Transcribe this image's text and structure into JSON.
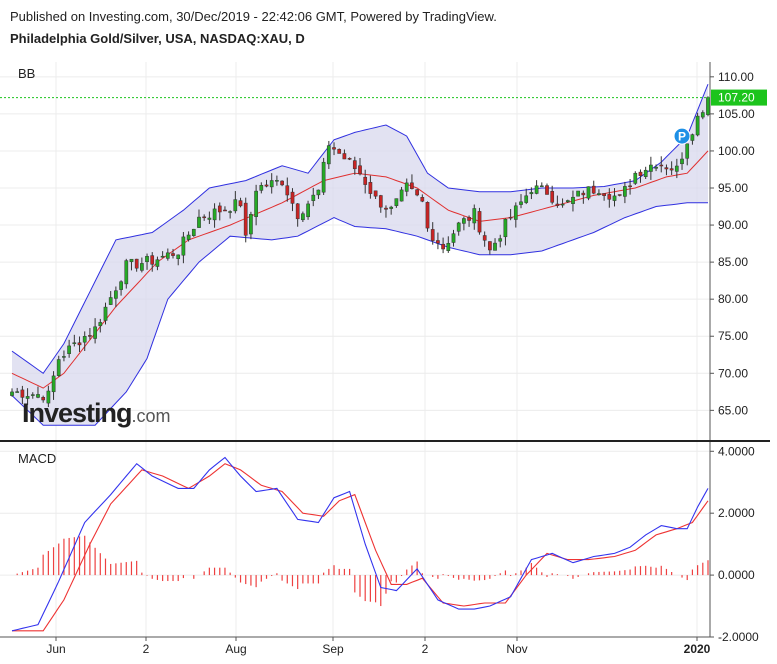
{
  "header": {
    "published": "Published on Investing.com, 30/Dec/2019 - 22:42:06 GMT, Powered by TradingView.",
    "symbol": "Philadelphia Gold/Silver, USA, NASDAQ:XAU, D"
  },
  "watermark": {
    "main": "Investing",
    "domain": ".com"
  },
  "colors": {
    "up": "#26a926",
    "down": "#c82424",
    "band_fill": "#d8d8ee",
    "band_line": "#3030e0",
    "basis_line": "#e03030",
    "macd_line": "#3333ee",
    "signal_line": "#ee3333",
    "histogram": "#ee4040",
    "price_line": "#1cc41c",
    "marker": "#1e90e6"
  },
  "chart_data": [
    {
      "type": "candlestick",
      "title": "BB",
      "ylim": [
        61,
        112
      ],
      "y_ticks": [
        "110.00",
        "105.00",
        "100.00",
        "95.00",
        "90.00",
        "85.00",
        "80.00",
        "75.00",
        "70.00",
        "65.00"
      ],
      "x_ticks": [
        "Jun",
        "2",
        "Aug",
        "Sep",
        "2",
        "Nov",
        "2020"
      ],
      "last_price": "107.20",
      "marker": {
        "label": "P",
        "price": 102.0,
        "index": 129
      },
      "candles_description": "Daily OHLC estimated from the image, generated by script from key closing prices",
      "close_keypoints": [
        [
          0,
          67.5
        ],
        [
          7,
          67.0
        ],
        [
          9,
          72
        ],
        [
          13,
          74.5
        ],
        [
          16,
          76
        ],
        [
          22,
          84.5
        ],
        [
          27,
          85.2
        ],
        [
          32,
          86.5
        ],
        [
          36,
          91
        ],
        [
          40,
          92
        ],
        [
          44,
          93
        ],
        [
          45,
          88
        ],
        [
          47,
          95
        ],
        [
          52,
          96
        ],
        [
          55,
          91.5
        ],
        [
          59,
          94.5
        ],
        [
          61,
          101
        ],
        [
          64,
          99
        ],
        [
          67,
          97
        ],
        [
          70,
          93.5
        ],
        [
          73,
          92
        ],
        [
          76,
          95
        ],
        [
          79,
          93
        ],
        [
          80,
          89.5
        ],
        [
          83,
          87
        ],
        [
          86,
          90
        ],
        [
          89,
          91.5
        ],
        [
          92,
          86.5
        ],
        [
          95,
          90
        ],
        [
          100,
          95
        ],
        [
          103,
          94.5
        ],
        [
          106,
          92.5
        ],
        [
          110,
          94.5
        ],
        [
          113,
          95
        ],
        [
          117,
          93.5
        ],
        [
          120,
          97
        ],
        [
          124,
          98.5
        ],
        [
          128,
          97.5
        ],
        [
          130,
          101.5
        ],
        [
          132,
          104.5
        ],
        [
          134,
          107.2
        ]
      ],
      "bands_keypoints": {
        "upper": [
          [
            0,
            73
          ],
          [
            6,
            70
          ],
          [
            10,
            74
          ],
          [
            20,
            88
          ],
          [
            27,
            89
          ],
          [
            33,
            92
          ],
          [
            38,
            95
          ],
          [
            45,
            96
          ],
          [
            52,
            98
          ],
          [
            57,
            97
          ],
          [
            62,
            101.5
          ],
          [
            66,
            102.5
          ],
          [
            72,
            103.5
          ],
          [
            76,
            102
          ],
          [
            80,
            97
          ],
          [
            84,
            95
          ],
          [
            90,
            94.5
          ],
          [
            96,
            94.5
          ],
          [
            102,
            95
          ],
          [
            108,
            95
          ],
          [
            114,
            95.2
          ],
          [
            120,
            96
          ],
          [
            125,
            98.5
          ],
          [
            130,
            102
          ],
          [
            134,
            109
          ]
        ],
        "middle": [
          [
            0,
            70
          ],
          [
            6,
            68
          ],
          [
            10,
            70
          ],
          [
            20,
            79
          ],
          [
            28,
            85
          ],
          [
            34,
            88
          ],
          [
            42,
            90
          ],
          [
            52,
            93
          ],
          [
            60,
            96
          ],
          [
            66,
            97
          ],
          [
            72,
            96.5
          ],
          [
            78,
            95
          ],
          [
            84,
            92
          ],
          [
            90,
            90.5
          ],
          [
            96,
            91
          ],
          [
            104,
            92.5
          ],
          [
            112,
            94
          ],
          [
            120,
            95
          ],
          [
            126,
            96.5
          ],
          [
            130,
            97
          ],
          [
            134,
            100
          ]
        ],
        "lower": [
          [
            0,
            67
          ],
          [
            6,
            63
          ],
          [
            10,
            63
          ],
          [
            16,
            63
          ],
          [
            22,
            67.5
          ],
          [
            26,
            72
          ],
          [
            30,
            80
          ],
          [
            36,
            85
          ],
          [
            42,
            88.5
          ],
          [
            50,
            88
          ],
          [
            55,
            88.5
          ],
          [
            62,
            91
          ],
          [
            66,
            89.8
          ],
          [
            72,
            89.5
          ],
          [
            78,
            88.5
          ],
          [
            84,
            87
          ],
          [
            90,
            86
          ],
          [
            96,
            86
          ],
          [
            102,
            86.5
          ],
          [
            108,
            88
          ],
          [
            112,
            89
          ],
          [
            118,
            91
          ],
          [
            124,
            92.5
          ],
          [
            130,
            93
          ],
          [
            134,
            93
          ]
        ]
      }
    },
    {
      "type": "line",
      "title": "MACD",
      "ylim": [
        -2,
        4.3
      ],
      "y_ticks": [
        "4.0000",
        "2.0000",
        "0.0000",
        "-2.0000"
      ],
      "series": [
        {
          "role": "macd",
          "keypoints": [
            [
              0,
              -1.8
            ],
            [
              5,
              -1.6
            ],
            [
              9,
              -0.2
            ],
            [
              14,
              1.7
            ],
            [
              19,
              2.6
            ],
            [
              24,
              3.6
            ],
            [
              27,
              3.2
            ],
            [
              32,
              2.8
            ],
            [
              35,
              2.8
            ],
            [
              38,
              3.4
            ],
            [
              41,
              3.8
            ],
            [
              44,
              3.2
            ],
            [
              47,
              2.7
            ],
            [
              51,
              2.8
            ],
            [
              55,
              1.8
            ],
            [
              59,
              1.7
            ],
            [
              62,
              2.5
            ],
            [
              65,
              2.7
            ],
            [
              68,
              1.0
            ],
            [
              71,
              -0.4
            ],
            [
              74,
              -0.5
            ],
            [
              78,
              0.2
            ],
            [
              82,
              -0.8
            ],
            [
              86,
              -1.1
            ],
            [
              89,
              -1.1
            ],
            [
              92,
              -1.0
            ],
            [
              96,
              -0.7
            ],
            [
              100,
              0.5
            ],
            [
              104,
              0.7
            ],
            [
              108,
              0.4
            ],
            [
              112,
              0.6
            ],
            [
              116,
              0.7
            ],
            [
              119,
              0.9
            ],
            [
              122,
              1.3
            ],
            [
              125,
              1.6
            ],
            [
              128,
              1.5
            ],
            [
              130,
              1.5
            ],
            [
              132,
              2.2
            ],
            [
              134,
              2.8
            ]
          ]
        },
        {
          "role": "signal",
          "keypoints": [
            [
              0,
              -1.8
            ],
            [
              6,
              -1.8
            ],
            [
              10,
              -0.8
            ],
            [
              15,
              1.0
            ],
            [
              19,
              2.3
            ],
            [
              25,
              3.4
            ],
            [
              29,
              3.2
            ],
            [
              34,
              2.8
            ],
            [
              38,
              3.2
            ],
            [
              41,
              3.6
            ],
            [
              44,
              3.4
            ],
            [
              48,
              2.9
            ],
            [
              52,
              2.7
            ],
            [
              56,
              2.0
            ],
            [
              60,
              1.9
            ],
            [
              63,
              2.4
            ],
            [
              66,
              2.6
            ],
            [
              70,
              0.8
            ],
            [
              73,
              -0.3
            ],
            [
              76,
              -0.3
            ],
            [
              79,
              -0.1
            ],
            [
              83,
              -0.9
            ],
            [
              87,
              -1.0
            ],
            [
              91,
              -0.9
            ],
            [
              95,
              -0.9
            ],
            [
              99,
              0.0
            ],
            [
              103,
              0.7
            ],
            [
              107,
              0.5
            ],
            [
              111,
              0.5
            ],
            [
              116,
              0.6
            ],
            [
              120,
              0.8
            ],
            [
              124,
              1.3
            ],
            [
              128,
              1.5
            ],
            [
              131,
              1.7
            ],
            [
              134,
              2.4
            ]
          ]
        }
      ]
    }
  ]
}
